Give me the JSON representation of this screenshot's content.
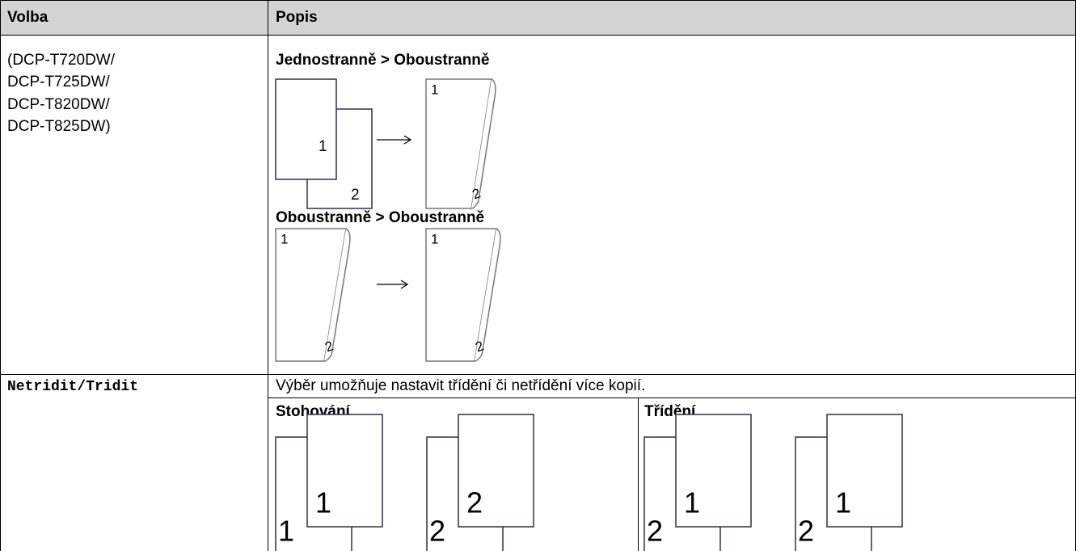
{
  "table": {
    "header": [
      "Volba",
      "Popis"
    ],
    "rows": [
      {
        "option": [
          "(DCP-T720DW/",
          "DCP-T725DW/",
          "DCP-T820DW/",
          "DCP-T825DW)"
        ],
        "items": [
          {
            "label": "Jednostranně > Oboustranně",
            "before": [
              "1",
              "2"
            ],
            "after": [
              "1",
              "2"
            ]
          },
          {
            "label": "Oboustranně > Oboustranně",
            "before": [
              "1",
              "2"
            ],
            "after": [
              "1",
              "2"
            ]
          }
        ]
      },
      {
        "option": "Netridit/Tridit",
        "description": "Výběr umožňuje nastavit třídění či netřídění více kopií.",
        "columns": [
          {
            "label": "Stohování",
            "sets": [
              [
                "1",
                "1"
              ],
              [
                "2",
                "2"
              ]
            ]
          },
          {
            "label": "Třídění",
            "sets": [
              [
                "2",
                "1"
              ],
              [
                "2",
                "1"
              ]
            ]
          }
        ]
      }
    ]
  }
}
